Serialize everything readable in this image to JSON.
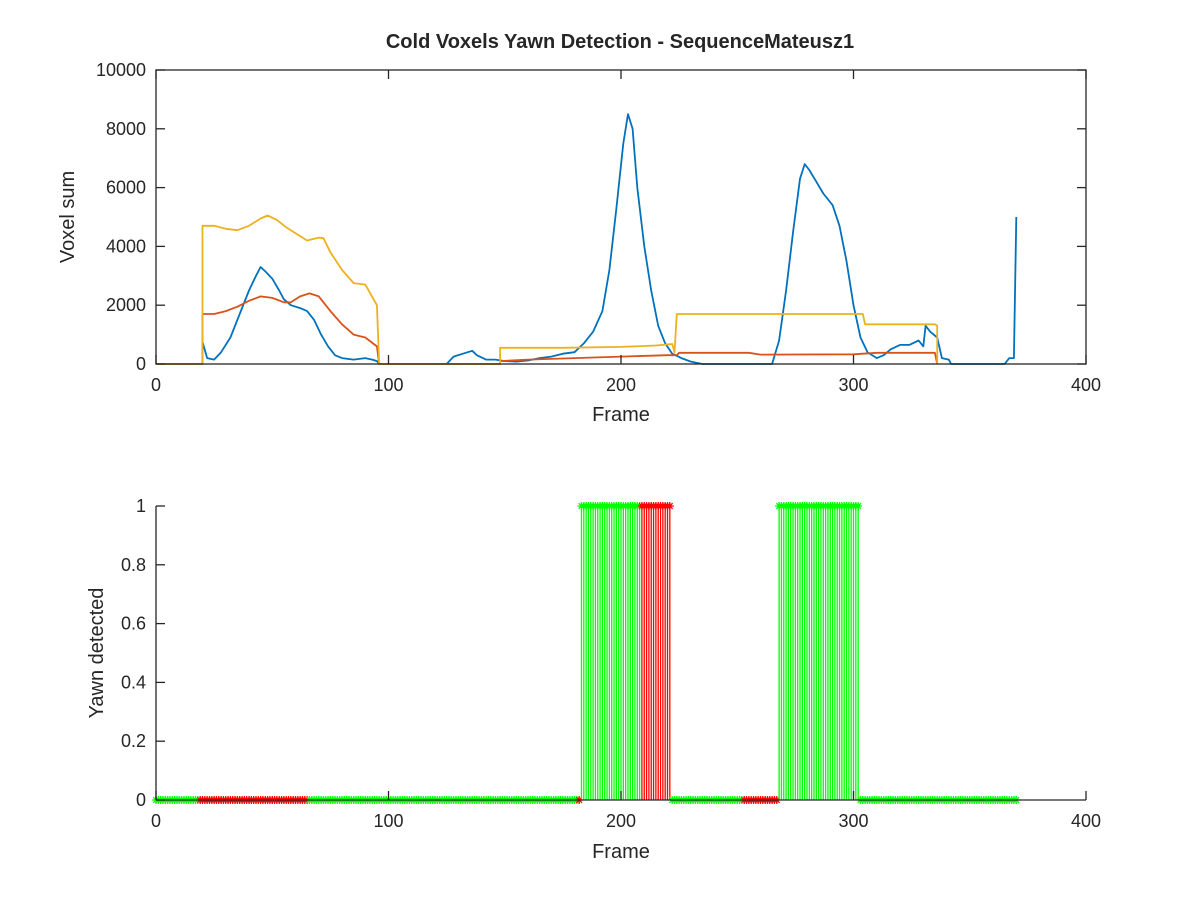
{
  "colors": {
    "blue": "#0072BD",
    "orange": "#D95319",
    "yellow": "#EDB120",
    "green": "#00FF00",
    "red": "#FF0000",
    "axis": "#262626",
    "background": "#FFFFFF"
  },
  "chart_data": [
    {
      "type": "line",
      "title": "Cold Voxels Yawn Detection - SequenceMateusz1",
      "xlabel": "Frame",
      "ylabel": "Voxel sum",
      "xlim": [
        0,
        400
      ],
      "ylim": [
        0,
        10000
      ],
      "xticks": [
        0,
        100,
        200,
        300,
        400
      ],
      "yticks": [
        0,
        2000,
        4000,
        6000,
        8000,
        10000
      ],
      "xtick_labels": [
        "0",
        "100",
        "200",
        "300",
        "400"
      ],
      "ytick_labels": [
        "0",
        "2000",
        "4000",
        "6000",
        "8000",
        "10000"
      ],
      "grid": false,
      "series": [
        {
          "color": "#0072BD",
          "points": [
            [
              0,
              0
            ],
            [
              20,
              0
            ],
            [
              20,
              750
            ],
            [
              22,
              200
            ],
            [
              25,
              150
            ],
            [
              28,
              400
            ],
            [
              32,
              900
            ],
            [
              36,
              1700
            ],
            [
              40,
              2500
            ],
            [
              43,
              3000
            ],
            [
              45,
              3300
            ],
            [
              47,
              3150
            ],
            [
              50,
              2900
            ],
            [
              53,
              2500
            ],
            [
              55,
              2200
            ],
            [
              58,
              2000
            ],
            [
              62,
              1900
            ],
            [
              65,
              1800
            ],
            [
              68,
              1500
            ],
            [
              71,
              1000
            ],
            [
              74,
              600
            ],
            [
              77,
              300
            ],
            [
              80,
              200
            ],
            [
              85,
              150
            ],
            [
              90,
              200
            ],
            [
              93,
              150
            ],
            [
              95,
              100
            ],
            [
              96,
              0
            ],
            [
              125,
              0
            ],
            [
              128,
              250
            ],
            [
              132,
              350
            ],
            [
              136,
              450
            ],
            [
              138,
              300
            ],
            [
              142,
              150
            ],
            [
              146,
              150
            ],
            [
              150,
              100
            ],
            [
              155,
              80
            ],
            [
              160,
              120
            ],
            [
              165,
              200
            ],
            [
              170,
              250
            ],
            [
              175,
              350
            ],
            [
              180,
              400
            ],
            [
              184,
              700
            ],
            [
              188,
              1100
            ],
            [
              192,
              1800
            ],
            [
              195,
              3200
            ],
            [
              198,
              5300
            ],
            [
              201,
              7500
            ],
            [
              203,
              8500
            ],
            [
              205,
              8000
            ],
            [
              207,
              6000
            ],
            [
              210,
              4000
            ],
            [
              213,
              2500
            ],
            [
              216,
              1300
            ],
            [
              219,
              700
            ],
            [
              222,
              350
            ],
            [
              226,
              200
            ],
            [
              230,
              80
            ],
            [
              235,
              0
            ],
            [
              265,
              0
            ],
            [
              268,
              800
            ],
            [
              271,
              2500
            ],
            [
              274,
              4500
            ],
            [
              277,
              6300
            ],
            [
              279,
              6800
            ],
            [
              281,
              6600
            ],
            [
              284,
              6200
            ],
            [
              287,
              5800
            ],
            [
              291,
              5400
            ],
            [
              294,
              4700
            ],
            [
              297,
              3500
            ],
            [
              300,
              2000
            ],
            [
              303,
              900
            ],
            [
              306,
              400
            ],
            [
              310,
              200
            ],
            [
              313,
              300
            ],
            [
              316,
              500
            ],
            [
              320,
              650
            ],
            [
              324,
              650
            ],
            [
              328,
              800
            ],
            [
              330,
              600
            ],
            [
              331,
              1300
            ],
            [
              333,
              1100
            ],
            [
              336,
              900
            ],
            [
              338,
              200
            ],
            [
              341,
              150
            ],
            [
              342,
              0
            ],
            [
              365,
              0
            ],
            [
              367,
              200
            ],
            [
              369,
              200
            ],
            [
              370,
              5000
            ]
          ]
        },
        {
          "color": "#D95319",
          "points": [
            [
              0,
              0
            ],
            [
              20,
              0
            ],
            [
              20,
              1700
            ],
            [
              25,
              1700
            ],
            [
              30,
              1800
            ],
            [
              35,
              1950
            ],
            [
              40,
              2150
            ],
            [
              45,
              2300
            ],
            [
              50,
              2250
            ],
            [
              55,
              2100
            ],
            [
              58,
              2100
            ],
            [
              62,
              2300
            ],
            [
              66,
              2400
            ],
            [
              70,
              2300
            ],
            [
              75,
              1800
            ],
            [
              80,
              1350
            ],
            [
              85,
              1000
            ],
            [
              90,
              900
            ],
            [
              95,
              600
            ],
            [
              96,
              0
            ],
            [
              148,
              0
            ],
            [
              148,
              100
            ],
            [
              160,
              150
            ],
            [
              180,
              200
            ],
            [
              200,
              250
            ],
            [
              220,
              300
            ],
            [
              224,
              300
            ],
            [
              225,
              380
            ],
            [
              240,
              380
            ],
            [
              255,
              380
            ],
            [
              260,
              320
            ],
            [
              300,
              330
            ],
            [
              310,
              380
            ],
            [
              335,
              380
            ],
            [
              336,
              0
            ]
          ]
        },
        {
          "color": "#EDB120",
          "points": [
            [
              0,
              0
            ],
            [
              20,
              0
            ],
            [
              20,
              4700
            ],
            [
              25,
              4700
            ],
            [
              30,
              4600
            ],
            [
              35,
              4550
            ],
            [
              40,
              4700
            ],
            [
              45,
              4950
            ],
            [
              48,
              5050
            ],
            [
              52,
              4900
            ],
            [
              56,
              4650
            ],
            [
              60,
              4450
            ],
            [
              65,
              4200
            ],
            [
              70,
              4300
            ],
            [
              72,
              4280
            ],
            [
              75,
              3800
            ],
            [
              80,
              3200
            ],
            [
              85,
              2750
            ],
            [
              90,
              2700
            ],
            [
              95,
              2000
            ],
            [
              96,
              0
            ],
            [
              148,
              0
            ],
            [
              148,
              550
            ],
            [
              160,
              550
            ],
            [
              175,
              550
            ],
            [
              200,
              580
            ],
            [
              215,
              630
            ],
            [
              222,
              680
            ],
            [
              223,
              400
            ],
            [
              224,
              1700
            ],
            [
              260,
              1700
            ],
            [
              280,
              1700
            ],
            [
              304,
              1700
            ],
            [
              305,
              1350
            ],
            [
              335,
              1350
            ],
            [
              336,
              1300
            ],
            [
              336,
              0
            ]
          ]
        }
      ]
    },
    {
      "type": "scatter",
      "xlabel": "Frame",
      "ylabel": "Yawn detected",
      "xlim": [
        0,
        400
      ],
      "ylim": [
        0,
        1
      ],
      "xticks": [
        0,
        100,
        200,
        300,
        400
      ],
      "yticks": [
        0,
        0.2,
        0.4,
        0.6,
        0.8,
        1
      ],
      "xtick_labels": [
        "0",
        "100",
        "200",
        "300",
        "400"
      ],
      "ytick_labels": [
        "0",
        "0.2",
        "0.4",
        "0.6",
        "0.8",
        "1"
      ],
      "grid": false,
      "frames": {
        "start": 0,
        "end": 370
      },
      "segments": [
        {
          "from": 0,
          "to": 18,
          "value": 0,
          "color": "#00FF00"
        },
        {
          "from": 19,
          "to": 65,
          "value": 0,
          "color": "#FF0000"
        },
        {
          "from": 66,
          "to": 181,
          "value": 0,
          "color": "#00FF00"
        },
        {
          "from": 182,
          "to": 182,
          "value": 0,
          "color": "#FF0000"
        },
        {
          "from": 183,
          "to": 208,
          "value": 1,
          "color": "#00FF00"
        },
        {
          "from": 209,
          "to": 221,
          "value": 1,
          "color": "#FF0000"
        },
        {
          "from": 222,
          "to": 252,
          "value": 0,
          "color": "#00FF00"
        },
        {
          "from": 253,
          "to": 267,
          "value": 0,
          "color": "#FF0000"
        },
        {
          "from": 268,
          "to": 302,
          "value": 1,
          "color": "#00FF00"
        },
        {
          "from": 303,
          "to": 370,
          "value": 0,
          "color": "#00FF00"
        }
      ]
    }
  ]
}
